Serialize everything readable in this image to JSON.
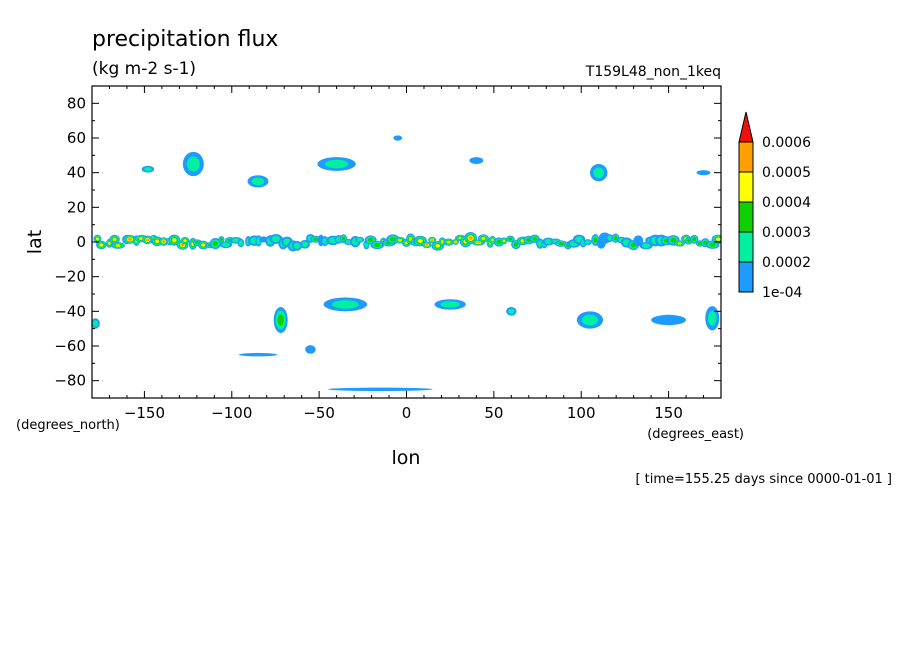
{
  "chart_data": {
    "type": "heatmap",
    "title": "precipitation flux",
    "units": "(kg m-2 s-1)",
    "run_label": "T159L48_non_1keq",
    "xlabel": "lon",
    "ylabel": "lat",
    "x_unit_label": "(degrees_east)",
    "y_unit_label": "(degrees_north)",
    "time_label": "[ time=155.25 days since 0000-01-01 ]",
    "xlim": [
      -180,
      180
    ],
    "ylim": [
      -90,
      90
    ],
    "x_ticks": [
      -150,
      -100,
      -50,
      0,
      50,
      100,
      150
    ],
    "x_tick_labels": [
      "−150",
      "−100",
      "−50",
      "0",
      "50",
      "100",
      "150"
    ],
    "y_ticks": [
      80,
      60,
      40,
      20,
      0,
      -20,
      -40,
      -60,
      -80
    ],
    "y_tick_labels": [
      "80",
      "60",
      "40",
      "20",
      "0",
      "−20",
      "−40",
      "−60",
      "−80"
    ],
    "colorbar": {
      "levels": [
        0.0001,
        0.0002,
        0.0003,
        0.0004,
        0.0005,
        0.0006
      ],
      "level_labels": [
        "1e-04",
        "0.0002",
        "0.0003",
        "0.0004",
        "0.0005",
        "0.0006"
      ],
      "colors": [
        "#1e9bff",
        "#00f0a0",
        "#10d000",
        "#ffff00",
        "#ffa000",
        "#f01010"
      ]
    },
    "features": [
      {
        "lon": -148,
        "lat": 42,
        "w": 7,
        "h": 4,
        "level": 2
      },
      {
        "lon": -122,
        "lat": 45,
        "w": 12,
        "h": 14,
        "level": 2
      },
      {
        "lon": -85,
        "lat": 35,
        "w": 12,
        "h": 7,
        "level": 2
      },
      {
        "lon": -40,
        "lat": 45,
        "w": 22,
        "h": 8,
        "level": 2
      },
      {
        "lon": -5,
        "lat": 60,
        "w": 5,
        "h": 3,
        "level": 1
      },
      {
        "lon": 40,
        "lat": 47,
        "w": 8,
        "h": 4,
        "level": 1
      },
      {
        "lon": 110,
        "lat": 40,
        "w": 10,
        "h": 10,
        "level": 2
      },
      {
        "lon": 170,
        "lat": 40,
        "w": 8,
        "h": 3,
        "level": 1
      },
      {
        "lon": -178,
        "lat": -47,
        "w": 5,
        "h": 6,
        "level": 2
      },
      {
        "lon": -72,
        "lat": -45,
        "w": 8,
        "h": 15,
        "level": 3
      },
      {
        "lon": -35,
        "lat": -36,
        "w": 25,
        "h": 8,
        "level": 2
      },
      {
        "lon": 25,
        "lat": -36,
        "w": 18,
        "h": 6,
        "level": 2
      },
      {
        "lon": 60,
        "lat": -40,
        "w": 6,
        "h": 5,
        "level": 2
      },
      {
        "lon": 105,
        "lat": -45,
        "w": 15,
        "h": 10,
        "level": 2
      },
      {
        "lon": 150,
        "lat": -45,
        "w": 20,
        "h": 6,
        "level": 1
      },
      {
        "lon": 175,
        "lat": -44,
        "w": 8,
        "h": 14,
        "level": 2
      },
      {
        "lon": -55,
        "lat": -62,
        "w": 6,
        "h": 5,
        "level": 1
      },
      {
        "lon": -85,
        "lat": -65,
        "w": 22,
        "h": 2,
        "level": 1
      },
      {
        "lon": -15,
        "lat": -85,
        "w": 60,
        "h": 2,
        "level": 1
      }
    ],
    "equatorial_band": {
      "lat_min": -6,
      "lat_max": 6,
      "peak_level": 6
    }
  }
}
